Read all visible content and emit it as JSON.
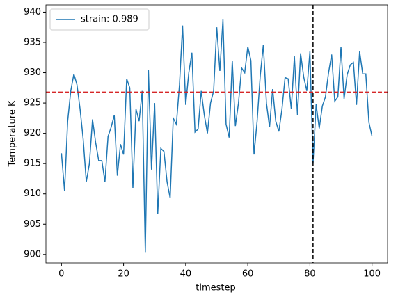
{
  "chart_data": {
    "type": "line",
    "xlabel": "timestep",
    "ylabel": "Temperature K",
    "x": [
      0,
      1,
      2,
      3,
      4,
      5,
      6,
      7,
      8,
      9,
      10,
      11,
      12,
      13,
      14,
      15,
      16,
      17,
      18,
      19,
      20,
      21,
      22,
      23,
      24,
      25,
      26,
      27,
      28,
      29,
      30,
      31,
      32,
      33,
      34,
      35,
      36,
      37,
      38,
      39,
      40,
      41,
      42,
      43,
      44,
      45,
      46,
      47,
      48,
      49,
      50,
      51,
      52,
      53,
      54,
      55,
      56,
      57,
      58,
      59,
      60,
      61,
      62,
      63,
      64,
      65,
      66,
      67,
      68,
      69,
      70,
      71,
      72,
      73,
      74,
      75,
      76,
      77,
      78,
      79,
      80,
      81,
      82,
      83,
      84,
      85,
      86,
      87,
      88,
      89,
      90,
      91,
      92,
      93,
      94,
      95,
      96,
      97,
      98,
      99,
      100
    ],
    "series": [
      {
        "name": "strain: 0.989",
        "color": "#1f77b4",
        "values": [
          916.7,
          910.5,
          922,
          927,
          929.8,
          928,
          924,
          919,
          912,
          915,
          922.3,
          918.5,
          915.5,
          915.5,
          912,
          919.5,
          921,
          923,
          913,
          918.2,
          916.5,
          929,
          927.5,
          911,
          924,
          922,
          927,
          900.4,
          930.5,
          914,
          925,
          906.7,
          917.5,
          917,
          912,
          909.3,
          922.5,
          921.5,
          928,
          937.8,
          924.7,
          930,
          933.3,
          920.2,
          920.7,
          927,
          923,
          920,
          925,
          927,
          937.5,
          930.3,
          938.8,
          921.5,
          919.3,
          932,
          921.2,
          925,
          930.8,
          930,
          934.3,
          932,
          916.5,
          922,
          929.5,
          934.6,
          925,
          921,
          927.3,
          922,
          920.3,
          924,
          929.2,
          929,
          924,
          932.7,
          923,
          933.2,
          929.3,
          927,
          933.5,
          915,
          924.8,
          920.8,
          924.5,
          926,
          930,
          933,
          925.3,
          926,
          934.2,
          925.7,
          929.7,
          931.3,
          931.7,
          924.7,
          933.5,
          929.8,
          929.8,
          921.8,
          919.5
        ]
      }
    ],
    "hline": {
      "value": 926.8,
      "color": "#d62728"
    },
    "vline": {
      "value": 81,
      "color": "#000000"
    },
    "xlim": [
      -5,
      105
    ],
    "ylim": [
      898.6,
      941.2
    ],
    "xticks": [
      0,
      20,
      40,
      60,
      80,
      100
    ],
    "yticks": [
      900,
      905,
      910,
      915,
      920,
      925,
      930,
      935,
      940
    ],
    "legend": "upper left"
  }
}
